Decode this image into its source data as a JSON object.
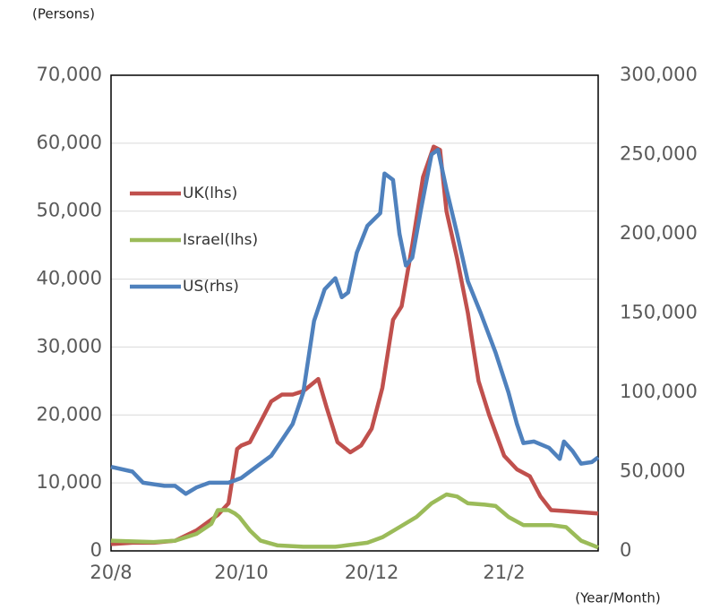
{
  "chart_data": {
    "type": "line",
    "y_label": "(Persons)",
    "x_label": "(Year/Month)",
    "xlim": [
      0,
      228
    ],
    "xticks": [
      {
        "value": 0,
        "label": "20/8"
      },
      {
        "value": 61,
        "label": "20/10"
      },
      {
        "value": 122,
        "label": "20/12"
      },
      {
        "value": 184,
        "label": "21/2"
      }
    ],
    "ylim": [
      0,
      70000
    ],
    "yticks": [
      {
        "value": 0,
        "label": "0"
      },
      {
        "value": 10000,
        "label": "10,000"
      },
      {
        "value": 20000,
        "label": "20,000"
      },
      {
        "value": 30000,
        "label": "30,000"
      },
      {
        "value": 40000,
        "label": "40,000"
      },
      {
        "value": 50000,
        "label": "50,000"
      },
      {
        "value": 60000,
        "label": "60,000"
      },
      {
        "value": 70000,
        "label": "70,000"
      }
    ],
    "y2lim": [
      0,
      300000
    ],
    "y2ticks": [
      {
        "value": 0,
        "label": "0"
      },
      {
        "value": 50000,
        "label": "50,000"
      },
      {
        "value": 100000,
        "label": "100,000"
      },
      {
        "value": 150000,
        "label": "150,000"
      },
      {
        "value": 200000,
        "label": "200,000"
      },
      {
        "value": 250000,
        "label": "250,000"
      },
      {
        "value": 300000,
        "label": "300,000"
      }
    ],
    "grid": true,
    "series": [
      {
        "name": "UK(lhs)",
        "color": "#c0504d",
        "x": [
          0,
          10,
          20,
          30,
          40,
          50,
          55,
          59,
          61,
          65,
          70,
          75,
          80,
          85,
          90,
          97,
          101,
          106,
          112,
          117,
          122,
          127,
          132,
          136,
          141,
          146,
          151,
          154,
          157,
          162,
          167,
          172,
          177,
          184,
          190,
          196,
          201,
          206,
          215,
          228
        ],
        "values": [
          1000,
          1200,
          1200,
          1500,
          3000,
          5300,
          7000,
          15000,
          15500,
          16000,
          19000,
          22000,
          23000,
          23000,
          23500,
          25300,
          21000,
          16000,
          14500,
          15500,
          18000,
          24000,
          34000,
          36000,
          45000,
          55000,
          59500,
          59000,
          50000,
          43000,
          35000,
          25000,
          20000,
          14000,
          12000,
          11000,
          8000,
          6000,
          5800,
          5500
        ]
      },
      {
        "name": "Israel(lhs)",
        "color": "#9bbb59",
        "x": [
          0,
          20,
          30,
          40,
          47,
          50,
          55,
          58,
          60,
          65,
          70,
          78,
          90,
          105,
          110,
          120,
          127,
          135,
          143,
          150,
          157,
          162,
          167,
          175,
          180,
          186,
          193,
          206,
          213,
          220,
          228
        ],
        "values": [
          1500,
          1300,
          1500,
          2500,
          4000,
          6000,
          6000,
          5500,
          5000,
          3000,
          1500,
          800,
          600,
          600,
          800,
          1200,
          2000,
          3500,
          5000,
          7000,
          8300,
          8000,
          7000,
          6800,
          6600,
          5000,
          3800,
          3800,
          3500,
          1500,
          500
        ]
      },
      {
        "name": "US(rhs)",
        "color": "#4f81bd",
        "axis": "y2",
        "x": [
          0,
          10,
          15,
          25,
          30,
          35,
          40,
          46,
          52,
          55,
          61,
          70,
          75,
          80,
          85,
          90,
          95,
          100,
          105,
          108,
          111,
          115,
          120,
          126,
          128,
          132,
          135,
          138,
          141,
          145,
          150,
          153,
          157,
          162,
          167,
          173,
          180,
          186,
          190,
          193,
          198,
          205,
          210,
          212,
          216,
          220,
          225,
          228
        ],
        "values": [
          53000,
          50000,
          43000,
          41000,
          41000,
          36000,
          40000,
          43000,
          43000,
          43000,
          46000,
          55000,
          60000,
          70000,
          80000,
          100000,
          145000,
          165000,
          172000,
          160000,
          163000,
          188000,
          205000,
          213000,
          238000,
          234000,
          200000,
          180000,
          185000,
          215000,
          250000,
          253000,
          228000,
          200000,
          170000,
          150000,
          125000,
          100000,
          80000,
          68000,
          69000,
          65000,
          58000,
          69000,
          63000,
          55000,
          56000,
          59000
        ]
      }
    ]
  }
}
